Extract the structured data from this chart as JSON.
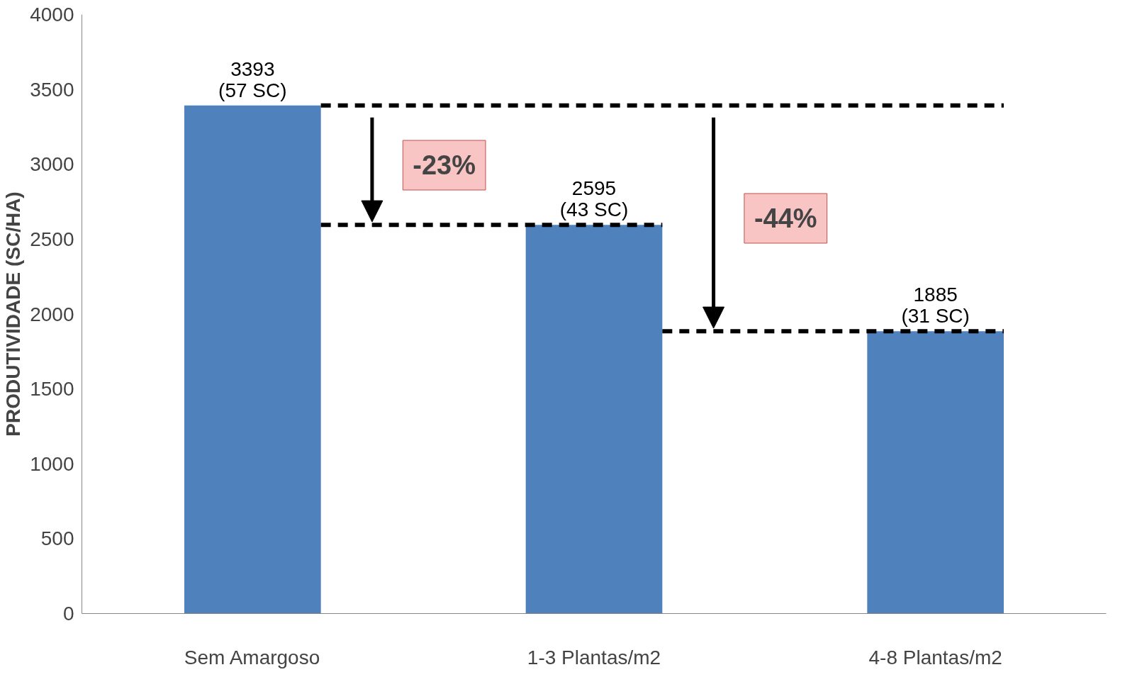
{
  "chart_data": {
    "type": "bar",
    "ylabel": "PRODUTIVIDADE (SC/HA)",
    "categories": [
      "Sem Amargoso",
      "1-3 Plantas/m2",
      "4-8 Plantas/m2"
    ],
    "values": [
      3393,
      2595,
      1885
    ],
    "color": "#4f81bd",
    "value_labels": [
      "3393\n(57 SC)",
      "2595\n(43 SC)",
      "1885\n(31 SC)"
    ],
    "ylim": [
      0,
      4000
    ],
    "yticks": [
      0,
      500,
      1000,
      1500,
      2000,
      2500,
      3000,
      3500,
      4000
    ],
    "grid": false,
    "ref_lines": [
      {
        "axis": "y",
        "value": 3393,
        "line_style": "dashed",
        "color": "#000000"
      },
      {
        "axis": "y",
        "value": 2595,
        "line_style": "dashed",
        "color": "#000000"
      },
      {
        "axis": "y",
        "value": 1885,
        "line_style": "dashed",
        "color": "#000000"
      }
    ],
    "annotations": [
      "-23%",
      "-44%"
    ]
  }
}
